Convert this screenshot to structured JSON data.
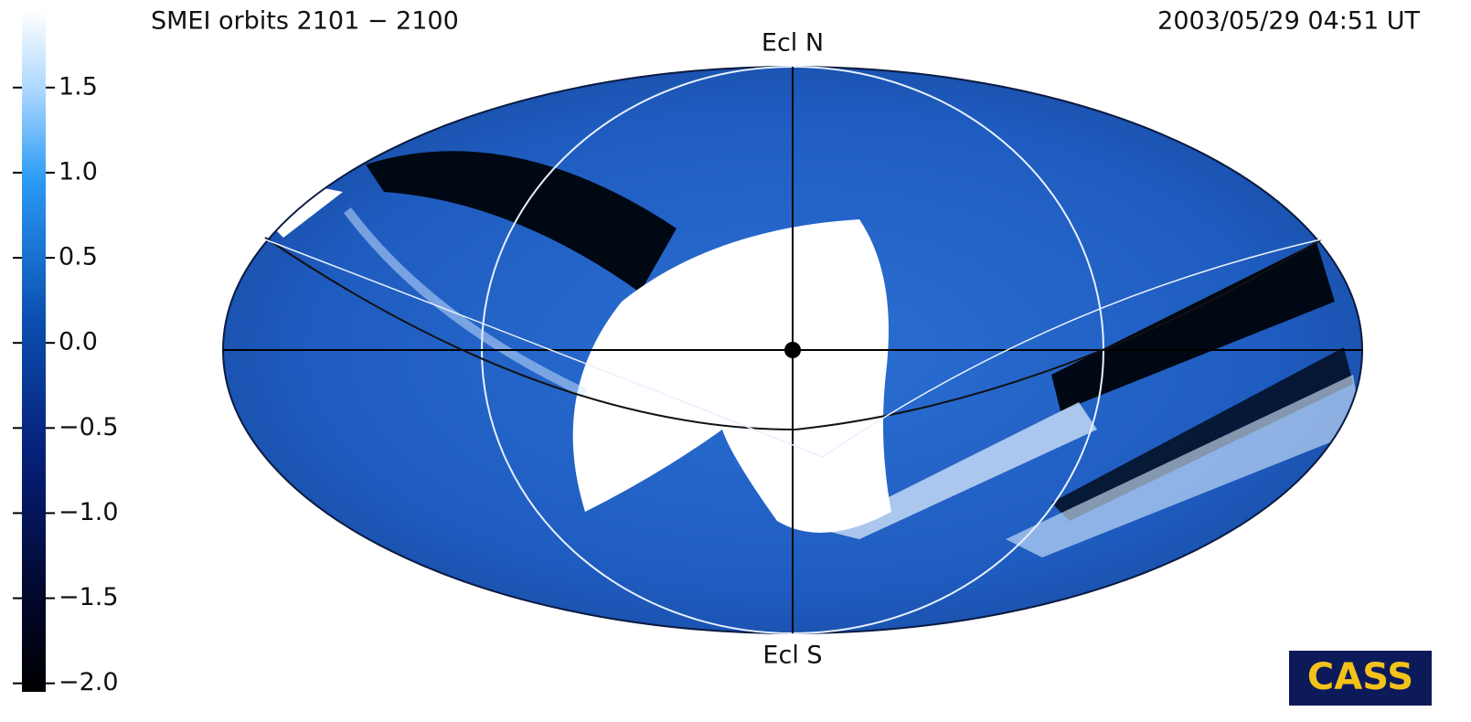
{
  "header": {
    "title": "SMEI orbits 2101 − 2100",
    "timestamp": "2003/05/29 04:51 UT"
  },
  "map": {
    "north_label": "Ecl N",
    "south_label": "Ecl S"
  },
  "colorbar": {
    "lim": [
      -2.05,
      1.95
    ],
    "ticks": [
      {
        "value": 1.5,
        "label": "1.5"
      },
      {
        "value": 1.0,
        "label": "1.0"
      },
      {
        "value": 0.5,
        "label": "0.5"
      },
      {
        "value": 0.0,
        "label": "0.0"
      },
      {
        "value": -0.5,
        "label": "−0.5"
      },
      {
        "value": -1.0,
        "label": "−1.0"
      },
      {
        "value": -1.5,
        "label": "−1.5"
      },
      {
        "value": -2.0,
        "label": "−2.0"
      }
    ]
  },
  "logo": {
    "text": "CASS"
  }
}
